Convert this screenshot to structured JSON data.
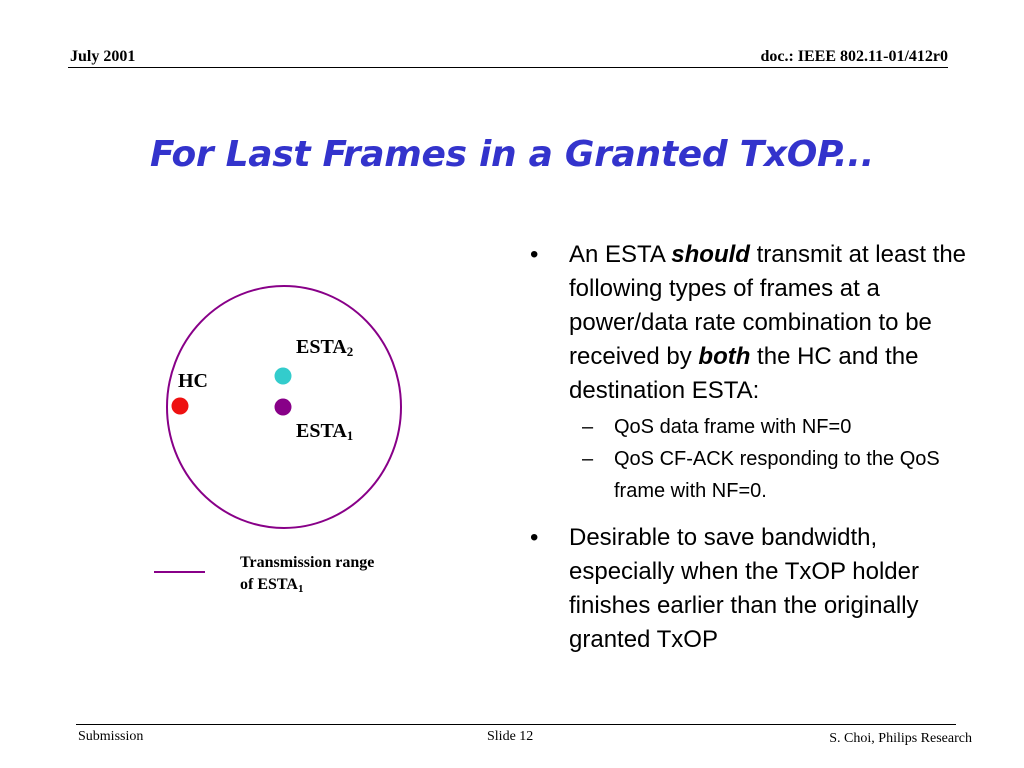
{
  "header": {
    "date": "July 2001",
    "doc": "doc.: IEEE 802.11-01/412r0"
  },
  "title": "For Last Frames in a Granted TxOP...",
  "diagram": {
    "hc_label": "HC",
    "esta2_label": "ESTA",
    "esta2_sub": "2",
    "esta1_label": "ESTA",
    "esta1_sub": "1",
    "legend_line1": "Transmission range",
    "legend_line2": "of ESTA",
    "legend_sub": "1",
    "colors": {
      "hc": "#ee1111",
      "esta2": "#33cccc",
      "esta1": "#880088",
      "range": "#880088"
    }
  },
  "bullets": [
    {
      "mark": "•",
      "t1": "An ESTA ",
      "em1": "should",
      "t2": " transmit at least the following types of frames at a power/data rate combination to be received by ",
      "em2": "both",
      "t3": " the HC and the destination ESTA:",
      "sub": [
        {
          "mark": "–",
          "text": "QoS data frame with NF=0"
        },
        {
          "mark": "–",
          "text": "QoS CF-ACK responding to the QoS frame with NF=0."
        }
      ]
    },
    {
      "mark": "•",
      "text": "Desirable to save bandwidth, especially when the TxOP holder finishes earlier than the originally granted TxOP"
    }
  ],
  "footer": {
    "left": "Submission",
    "center": "Slide 12",
    "right": "S. Choi, Philips Research"
  }
}
